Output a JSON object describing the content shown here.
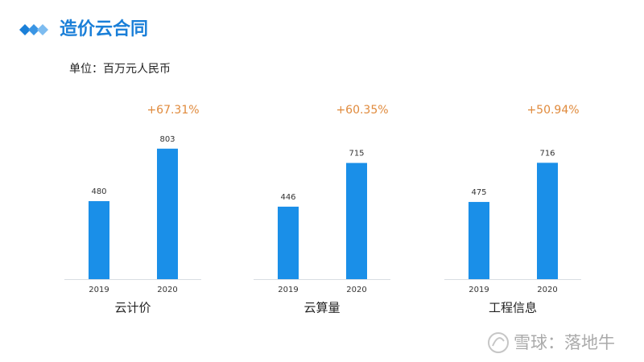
{
  "title": "造价云合同",
  "unit": "单位：百万元人民币",
  "watermark": "雪球：落地牛",
  "chart_data": [
    {
      "type": "bar",
      "xlabel": "云计价",
      "annotation": "+67.31%",
      "categories": [
        "2019",
        "2020"
      ],
      "values": [
        480,
        803
      ],
      "color": "#1a8fe8"
    },
    {
      "type": "bar",
      "xlabel": "云算量",
      "annotation": "+60.35%",
      "categories": [
        "2019",
        "2020"
      ],
      "values": [
        446,
        715
      ],
      "color": "#1a8fe8"
    },
    {
      "type": "bar",
      "xlabel": "工程信息",
      "annotation": "+50.94%",
      "categories": [
        "2019",
        "2020"
      ],
      "values": [
        475,
        716
      ],
      "color": "#1a8fe8"
    }
  ]
}
